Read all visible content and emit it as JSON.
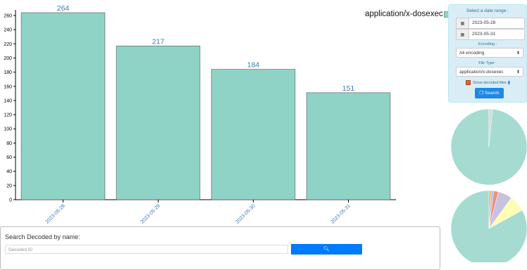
{
  "chart_data": {
    "type": "bar",
    "categories": [
      "2023-05-28",
      "2023-05-29",
      "2023-05-30",
      "2023-05-31"
    ],
    "values": [
      264,
      217,
      184,
      151
    ],
    "data_labels": [
      "264",
      "217",
      "184",
      "151"
    ],
    "y_ticks": [
      "0",
      "20",
      "40",
      "60",
      "80",
      "100",
      "120",
      "140",
      "160",
      "180",
      "200",
      "220",
      "240",
      "260"
    ],
    "ylim": [
      0,
      265
    ],
    "bar_color": "#8fd3c7",
    "legend": "application/x-dosexec"
  },
  "panel": {
    "title": "Select a date range :",
    "date_from": "2023-05-28",
    "date_to": "2023-05-31",
    "encoding_label": "Encoding :",
    "encoding_value": "All encoding",
    "filetype_label": "File Type :",
    "filetype_value": "application/x-dosexec",
    "show_decoded_label": "Show decoded files",
    "search_button": "Search"
  },
  "search": {
    "title": "Search Decoded by name:",
    "placeholder": "Decoded ID"
  },
  "pies": [
    {
      "values": [
        0.985,
        0.015
      ],
      "colors": [
        "#a6dbd2",
        "#d8d8d8"
      ]
    },
    {
      "values": [
        0.83,
        0.07,
        0.06,
        0.02,
        0.01,
        0.01
      ],
      "colors": [
        "#a6dbd2",
        "#fdfdb3",
        "#c8c2e0",
        "#f2907e",
        "#9fc5e8",
        "#f5b36b"
      ]
    }
  ]
}
